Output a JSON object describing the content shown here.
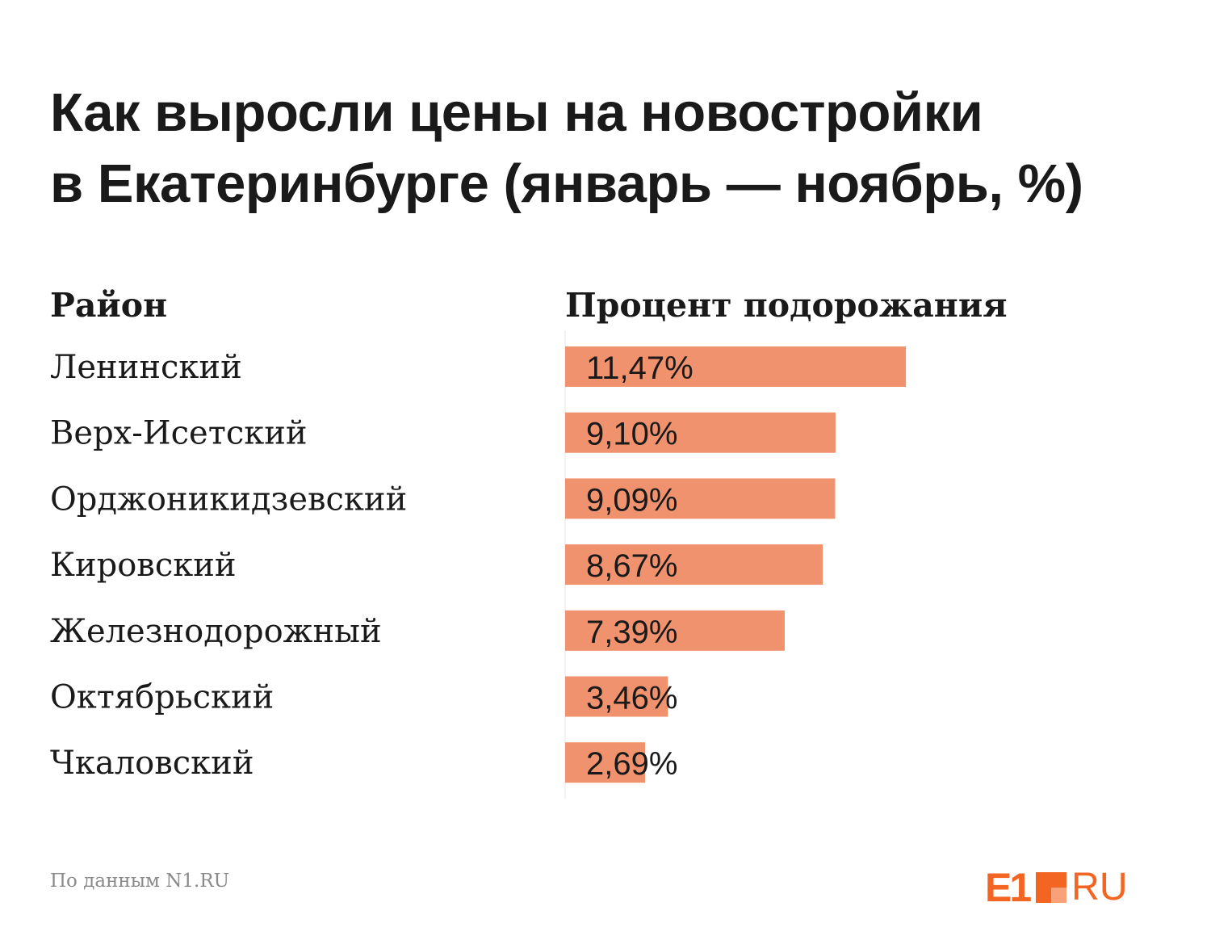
{
  "title": {
    "line1": "Как выросли цены на новостройки",
    "line2": "в Екатеринбурге  (январь — ноябрь, %)"
  },
  "columns": {
    "district": "Район",
    "percent": "Процент подорожания"
  },
  "chart_data": {
    "type": "bar",
    "orientation": "horizontal",
    "categories": [
      "Ленинский",
      "Верх-Исетский",
      "Орджоникидзевский",
      "Кировский",
      "Железнодорожный",
      "Октябрьский",
      "Чкаловский"
    ],
    "values": [
      11.47,
      9.1,
      9.09,
      8.67,
      7.39,
      3.46,
      2.69
    ],
    "value_labels": [
      "11,47%",
      "9,10%",
      "9,09%",
      "8,67%",
      "7,39%",
      "3,46%",
      "2,69%"
    ],
    "title": "Как выросли цены на новостройки в Екатеринбурге  (январь — ноябрь, %)",
    "xlabel": "Процент подорожания",
    "ylabel": "Район",
    "grid": false,
    "legend": "none",
    "bar_color": "#f0926e"
  },
  "source": "По данным N1.RU",
  "logo": {
    "left": "E1",
    "right": "RU",
    "color": "#f26522"
  }
}
